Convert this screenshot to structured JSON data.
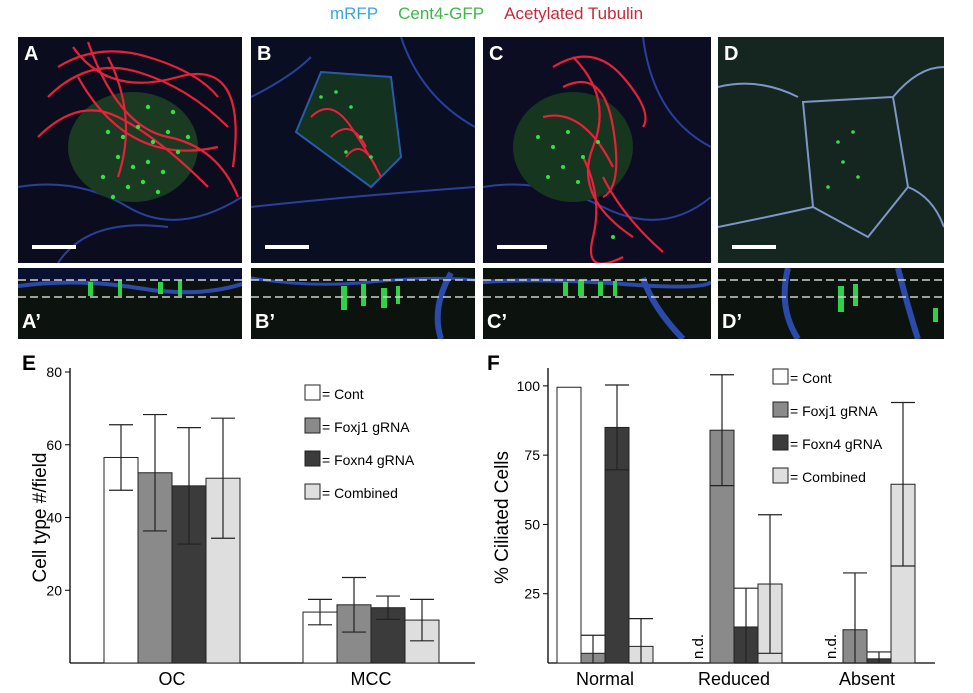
{
  "figure_legend": [
    {
      "label": "mRFP",
      "color": "#3aa6de"
    },
    {
      "label": "Cent4-GFP",
      "color": "#3cb84a"
    },
    {
      "label": "Acetylated Tubulin",
      "color": "#c8283a"
    }
  ],
  "panels": [
    {
      "letter": "A",
      "sublabel": "A’"
    },
    {
      "letter": "B",
      "sublabel": "B’"
    },
    {
      "letter": "C",
      "sublabel": "C’"
    },
    {
      "letter": "D",
      "sublabel": "D’"
    }
  ],
  "chart_data": [
    {
      "type": "bar",
      "panel_letter": "E",
      "ylabel": "Cell type #/field",
      "ylim": [
        0,
        80
      ],
      "yticks": [
        20,
        40,
        60,
        80
      ],
      "categories": [
        "OC",
        "MCC"
      ],
      "series": [
        {
          "name": "= Cont",
          "color": "#ffffff",
          "values": [
            56.5,
            14.0
          ],
          "errors": [
            9,
            3.5
          ]
        },
        {
          "name": "= Foxj1 gRNA",
          "color": "#8a8a8a",
          "values": [
            52.3,
            16.0
          ],
          "errors": [
            16,
            7.5
          ]
        },
        {
          "name": "= Foxn4 gRNA",
          "color": "#3b3b3b",
          "values": [
            48.7,
            15.2
          ],
          "errors": [
            16,
            3.2
          ]
        },
        {
          "name": "= Combined",
          "color": "#dedede",
          "values": [
            50.8,
            11.8
          ],
          "errors": [
            16.5,
            5.7
          ]
        }
      ]
    },
    {
      "type": "bar",
      "panel_letter": "F",
      "ylabel": "% Ciliated Cells",
      "ylim": [
        0,
        105
      ],
      "yticks": [
        25,
        50,
        75,
        100
      ],
      "categories": [
        "Normal",
        "Reduced",
        "Absent"
      ],
      "na_label": "n.d.",
      "series": [
        {
          "name": "= Cont",
          "color": "#ffffff",
          "values": [
            99.5,
            null,
            null
          ],
          "errors": [
            0,
            0,
            0
          ]
        },
        {
          "name": "= Foxj1 gRNA",
          "color": "#8a8a8a",
          "values": [
            3.5,
            84,
            12
          ],
          "errors": [
            6.5,
            20,
            20.5
          ]
        },
        {
          "name": "= Foxn4 gRNA",
          "color": "#3b3b3b",
          "values": [
            85,
            13,
            1.5
          ],
          "errors": [
            15.3,
            14,
            2.5
          ]
        },
        {
          "name": "= Combined",
          "color": "#dedede",
          "values": [
            6,
            28.5,
            64.5
          ],
          "errors": [
            10,
            25,
            29.5
          ]
        }
      ]
    }
  ]
}
